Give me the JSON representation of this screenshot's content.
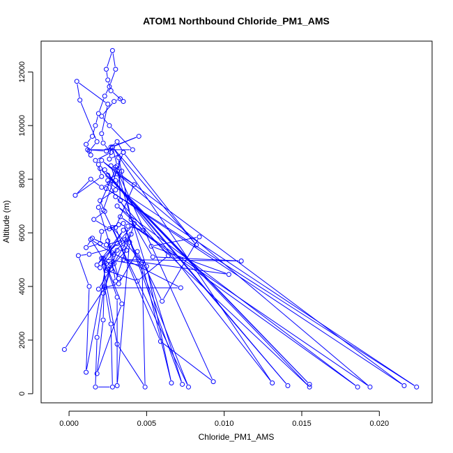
{
  "chart_data": {
    "type": "line",
    "title": "ATOM1 Northbound Chloride_PM1_AMS",
    "xlabel": "Chloride_PM1_AMS",
    "ylabel": "Altitude (m)",
    "xlim": [
      -0.0018,
      0.0234
    ],
    "ylim": [
      -340,
      13150
    ],
    "x_ticks": [
      {
        "value": 0.0,
        "label": "0.000"
      },
      {
        "value": 0.005,
        "label": "0.005"
      },
      {
        "value": 0.01,
        "label": "0.010"
      },
      {
        "value": 0.015,
        "label": "0.015"
      },
      {
        "value": 0.02,
        "label": "0.020"
      }
    ],
    "y_ticks": [
      {
        "value": 0,
        "label": "0"
      },
      {
        "value": 2000,
        "label": "2000"
      },
      {
        "value": 4000,
        "label": "4000"
      },
      {
        "value": 6000,
        "label": "6000"
      },
      {
        "value": 8000,
        "label": "8000"
      },
      {
        "value": 10000,
        "label": "10000"
      },
      {
        "value": 12000,
        "label": "12000"
      }
    ],
    "grid": false,
    "legend": "none",
    "color": "#0000ff",
    "series": [
      {
        "points": [
          [
            -0.0003,
            1650
          ],
          [
            0.0023,
            3950
          ],
          [
            0.0072,
            3950
          ],
          [
            0.0028,
            5250
          ],
          [
            0.0019,
            6950
          ],
          [
            0.0031,
            8500
          ],
          [
            0.0028,
            9200
          ],
          [
            0.0045,
            9600
          ],
          [
            0.0027,
            9200
          ],
          [
            0.0026,
            8750
          ],
          [
            0.0035,
            9000
          ],
          [
            0.0031,
            9400
          ],
          [
            0.0024,
            9050
          ],
          [
            0.0012,
            9100
          ],
          [
            0.0041,
            9100
          ],
          [
            0.0026,
            10000
          ],
          [
            0.0021,
            10350
          ],
          [
            0.0029,
            10900
          ],
          [
            0.0033,
            11000
          ],
          [
            0.0035,
            10900
          ],
          [
            0.0027,
            11300
          ],
          [
            0.0025,
            11700
          ],
          [
            0.0024,
            12100
          ],
          [
            0.0028,
            12800
          ],
          [
            0.003,
            12100
          ],
          [
            0.0026,
            11450
          ],
          [
            0.0023,
            11100
          ],
          [
            0.0019,
            10450
          ],
          [
            0.0017,
            10000
          ],
          [
            0.0015,
            9600
          ],
          [
            0.0011,
            9300
          ],
          [
            0.0014,
            8900
          ],
          [
            0.0013,
            9050
          ],
          [
            0.0018,
            9400
          ],
          [
            0.0007,
            10950
          ],
          [
            0.0005,
            11650
          ],
          [
            0.0025,
            10800
          ],
          [
            0.0021,
            9700
          ],
          [
            0.0022,
            9350
          ],
          [
            0.0027,
            9000
          ],
          [
            0.0017,
            8700
          ],
          [
            0.0019,
            8550
          ],
          [
            0.0021,
            8100
          ],
          [
            0.0004,
            7400
          ],
          [
            0.0014,
            8000
          ],
          [
            0.0021,
            7700
          ],
          [
            0.003,
            7950
          ],
          [
            0.0027,
            8500
          ],
          [
            0.0034,
            8300
          ],
          [
            0.003,
            7600
          ],
          [
            0.002,
            7200
          ],
          [
            0.0023,
            6800
          ],
          [
            0.0016,
            6500
          ],
          [
            0.0026,
            6150
          ],
          [
            0.0032,
            6300
          ],
          [
            0.0021,
            6050
          ],
          [
            0.002,
            5600
          ],
          [
            0.0011,
            5450
          ],
          [
            0.0015,
            5800
          ],
          [
            0.0024,
            5550
          ],
          [
            0.0036,
            5750
          ],
          [
            0.0026,
            5400
          ],
          [
            0.0013,
            5200
          ],
          [
            0.0006,
            5150
          ],
          [
            0.0013,
            4000
          ],
          [
            0.0011,
            800
          ],
          [
            0.0024,
            4850
          ],
          [
            0.0014,
            5750
          ],
          [
            0.0029,
            5200
          ],
          [
            0.0023,
            4000
          ],
          [
            0.0027,
            2600
          ],
          [
            0.0028,
            250
          ],
          [
            0.0017,
            250
          ],
          [
            0.0018,
            2100
          ],
          [
            0.0022,
            3750
          ],
          [
            0.0027,
            4650
          ],
          [
            0.0031,
            5350
          ],
          [
            0.0037,
            5350
          ],
          [
            0.0029,
            4850
          ],
          [
            0.0023,
            4900
          ],
          [
            0.0022,
            2750
          ],
          [
            0.0018,
            750
          ],
          [
            0.0034,
            3350
          ],
          [
            0.0025,
            4650
          ],
          [
            0.0022,
            5050
          ],
          [
            0.0031,
            3600
          ],
          [
            0.0031,
            300
          ],
          [
            0.0039,
            5650
          ],
          [
            0.0047,
            4900
          ],
          [
            0.0049,
            250
          ],
          [
            0.0031,
            1850
          ],
          [
            0.0021,
            5050
          ],
          [
            0.005,
            4750
          ],
          [
            0.0066,
            400
          ],
          [
            0.0047,
            4900
          ],
          [
            0.0028,
            6200
          ],
          [
            0.0059,
            1950
          ],
          [
            0.0093,
            450
          ],
          [
            0.003,
            8450
          ],
          [
            0.0073,
            350
          ],
          [
            0.0035,
            6350
          ],
          [
            0.0077,
            250
          ],
          [
            0.0022,
            6850
          ],
          [
            0.0035,
            9000
          ],
          [
            0.0082,
            5550
          ],
          [
            0.0028,
            9200
          ],
          [
            0.0131,
            400
          ],
          [
            0.0023,
            8350
          ],
          [
            0.0141,
            300
          ],
          [
            0.0025,
            8150
          ],
          [
            0.0155,
            350
          ],
          [
            0.002,
            8400
          ],
          [
            0.0155,
            250
          ],
          [
            0.0031,
            7000
          ],
          [
            0.0186,
            250
          ],
          [
            0.0033,
            6600
          ],
          [
            0.0194,
            250
          ],
          [
            0.0021,
            8700
          ],
          [
            0.0216,
            300
          ],
          [
            0.0024,
            7650
          ],
          [
            0.0224,
            250
          ],
          [
            0.0026,
            7850
          ],
          [
            0.003,
            7350
          ],
          [
            0.0064,
            5150
          ],
          [
            0.0044,
            4200
          ],
          [
            0.0024,
            4600
          ],
          [
            0.0027,
            4850
          ],
          [
            0.0032,
            4300
          ],
          [
            0.0025,
            5700
          ],
          [
            0.003,
            4200
          ],
          [
            0.0042,
            6350
          ],
          [
            0.0031,
            5600
          ],
          [
            0.0018,
            4800
          ],
          [
            0.0035,
            6100
          ],
          [
            0.002,
            4700
          ],
          [
            0.004,
            5950
          ],
          [
            0.0019,
            3900
          ],
          [
            0.0032,
            4100
          ],
          [
            0.0044,
            5300
          ],
          [
            0.006,
            3450
          ],
          [
            0.0084,
            5850
          ],
          [
            0.0053,
            5500
          ],
          [
            0.0103,
            4450
          ],
          [
            0.0035,
            5000
          ],
          [
            0.0111,
            4950
          ],
          [
            0.0054,
            5100
          ],
          [
            0.0033,
            7200
          ],
          [
            0.0032,
            8800
          ],
          [
            0.004,
            6500
          ],
          [
            0.0048,
            6100
          ],
          [
            0.0038,
            6250
          ],
          [
            0.0035,
            5450
          ],
          [
            0.003,
            6200
          ],
          [
            0.0042,
            7800
          ],
          [
            0.0031,
            8200
          ],
          [
            0.0025,
            7950
          ]
        ]
      }
    ]
  }
}
